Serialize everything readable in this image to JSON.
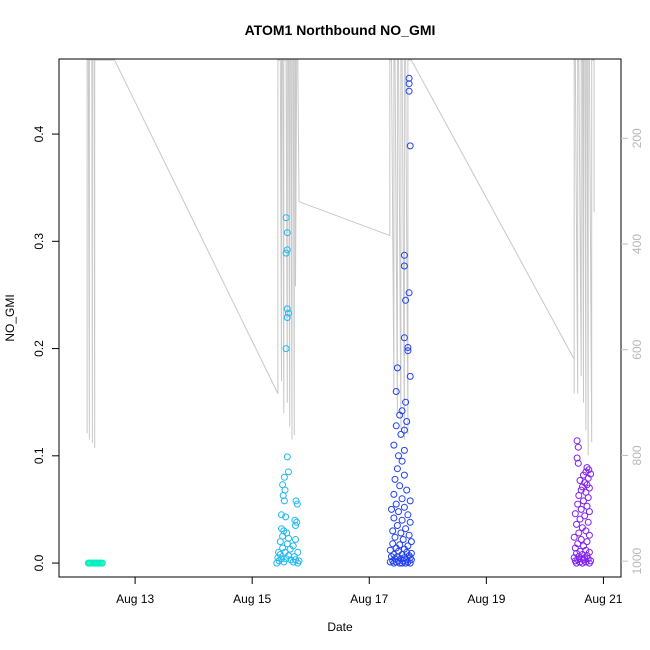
{
  "chart_data": {
    "type": "scatter",
    "title": "ATOM1 Northbound NO_GMI",
    "xlabel": "Date",
    "ylabel": "NO_GMI",
    "x_ticks": [
      "Aug 13",
      "Aug 15",
      "Aug 17",
      "Aug 19",
      "Aug 21"
    ],
    "x_tick_days": [
      13,
      15,
      17,
      19,
      21
    ],
    "xlim_days": [
      11.7,
      21.3
    ],
    "y_ticks": [
      "0.0",
      "0.1",
      "0.2",
      "0.3",
      "0.4"
    ],
    "y_tick_values": [
      0.0,
      0.1,
      0.2,
      0.3,
      0.4
    ],
    "ylim": [
      -0.013,
      0.47
    ],
    "secondary_axis": {
      "reversed": true,
      "ticks": [
        "200",
        "400",
        "600",
        "800",
        "1000"
      ],
      "tick_values": [
        200,
        400,
        600,
        800,
        1000
      ],
      "lim": [
        50,
        1030
      ],
      "color": "#bebebe"
    },
    "pressure_trace_color": "#c8c8c8",
    "series": [
      {
        "color": "#00f0c0",
        "points": [
          [
            12.2,
            0.0
          ],
          [
            12.22,
            0.0
          ],
          [
            12.24,
            0.0
          ],
          [
            12.26,
            0.0
          ],
          [
            12.28,
            0.0
          ],
          [
            12.3,
            0.0
          ],
          [
            12.32,
            0.0
          ],
          [
            12.34,
            0.0
          ],
          [
            12.36,
            0.0
          ],
          [
            12.38,
            0.0
          ],
          [
            12.4,
            0.0
          ],
          [
            12.42,
            0.0
          ],
          [
            12.44,
            0.0
          ]
        ]
      },
      {
        "color": "#20b8f0",
        "points": [
          [
            15.58,
            0.322
          ],
          [
            15.6,
            0.308
          ],
          [
            15.6,
            0.292
          ],
          [
            15.58,
            0.289
          ],
          [
            15.6,
            0.237
          ],
          [
            15.62,
            0.233
          ],
          [
            15.6,
            0.229
          ],
          [
            15.58,
            0.2
          ],
          [
            15.6,
            0.099
          ],
          [
            15.62,
            0.085
          ],
          [
            15.55,
            0.08
          ],
          [
            15.52,
            0.073
          ],
          [
            15.56,
            0.068
          ],
          [
            15.53,
            0.063
          ],
          [
            15.55,
            0.058
          ],
          [
            15.75,
            0.058
          ],
          [
            15.77,
            0.055
          ],
          [
            15.5,
            0.045
          ],
          [
            15.57,
            0.043
          ],
          [
            15.73,
            0.04
          ],
          [
            15.76,
            0.038
          ],
          [
            15.74,
            0.035
          ],
          [
            15.5,
            0.032
          ],
          [
            15.54,
            0.03
          ],
          [
            15.59,
            0.028
          ],
          [
            15.52,
            0.025
          ],
          [
            15.62,
            0.023
          ],
          [
            15.74,
            0.022
          ],
          [
            15.48,
            0.02
          ],
          [
            15.6,
            0.018
          ],
          [
            15.7,
            0.016
          ],
          [
            15.52,
            0.014
          ],
          [
            15.65,
            0.013
          ],
          [
            15.45,
            0.01
          ],
          [
            15.56,
            0.01
          ],
          [
            15.78,
            0.01
          ],
          [
            15.48,
            0.008
          ],
          [
            15.62,
            0.007
          ],
          [
            15.72,
            0.006
          ],
          [
            15.44,
            0.005
          ],
          [
            15.5,
            0.004
          ],
          [
            15.58,
            0.004
          ],
          [
            15.66,
            0.003
          ],
          [
            15.74,
            0.003
          ],
          [
            15.8,
            0.002
          ],
          [
            15.46,
            0.002
          ],
          [
            15.54,
            0.001
          ],
          [
            15.7,
            0.001
          ],
          [
            15.78,
            0.0
          ],
          [
            15.42,
            0.0
          ]
        ]
      },
      {
        "color": "#2040f0",
        "points": [
          [
            17.68,
            0.452
          ],
          [
            17.68,
            0.447
          ],
          [
            17.68,
            0.44
          ],
          [
            17.7,
            0.389
          ],
          [
            17.6,
            0.287
          ],
          [
            17.6,
            0.277
          ],
          [
            17.68,
            0.252
          ],
          [
            17.62,
            0.245
          ],
          [
            17.6,
            0.21
          ],
          [
            17.66,
            0.201
          ],
          [
            17.66,
            0.198
          ],
          [
            17.48,
            0.182
          ],
          [
            17.7,
            0.174
          ],
          [
            17.46,
            0.16
          ],
          [
            17.62,
            0.15
          ],
          [
            17.56,
            0.142
          ],
          [
            17.52,
            0.138
          ],
          [
            17.64,
            0.132
          ],
          [
            17.46,
            0.128
          ],
          [
            17.6,
            0.124
          ],
          [
            17.54,
            0.12
          ],
          [
            17.42,
            0.11
          ],
          [
            17.6,
            0.105
          ],
          [
            17.5,
            0.1
          ],
          [
            17.56,
            0.095
          ],
          [
            17.48,
            0.088
          ],
          [
            17.6,
            0.082
          ],
          [
            17.44,
            0.078
          ],
          [
            17.52,
            0.072
          ],
          [
            17.64,
            0.068
          ],
          [
            17.42,
            0.064
          ],
          [
            17.56,
            0.06
          ],
          [
            17.7,
            0.058
          ],
          [
            17.46,
            0.055
          ],
          [
            17.6,
            0.052
          ],
          [
            17.38,
            0.05
          ],
          [
            17.5,
            0.048
          ],
          [
            17.66,
            0.045
          ],
          [
            17.42,
            0.042
          ],
          [
            17.56,
            0.04
          ],
          [
            17.7,
            0.038
          ],
          [
            17.48,
            0.035
          ],
          [
            17.62,
            0.032
          ],
          [
            17.4,
            0.03
          ],
          [
            17.54,
            0.028
          ],
          [
            17.68,
            0.026
          ],
          [
            17.44,
            0.024
          ],
          [
            17.58,
            0.022
          ],
          [
            17.72,
            0.02
          ],
          [
            17.4,
            0.018
          ],
          [
            17.52,
            0.017
          ],
          [
            17.66,
            0.016
          ],
          [
            17.46,
            0.014
          ],
          [
            17.6,
            0.013
          ],
          [
            17.36,
            0.012
          ],
          [
            17.5,
            0.011
          ],
          [
            17.64,
            0.01
          ],
          [
            17.72,
            0.009
          ],
          [
            17.42,
            0.008
          ],
          [
            17.56,
            0.008
          ],
          [
            17.68,
            0.007
          ],
          [
            17.38,
            0.006
          ],
          [
            17.48,
            0.006
          ],
          [
            17.6,
            0.005
          ],
          [
            17.7,
            0.005
          ],
          [
            17.44,
            0.004
          ],
          [
            17.54,
            0.004
          ],
          [
            17.64,
            0.003
          ],
          [
            17.72,
            0.003
          ],
          [
            17.4,
            0.002
          ],
          [
            17.5,
            0.002
          ],
          [
            17.58,
            0.002
          ],
          [
            17.66,
            0.001
          ],
          [
            17.36,
            0.001
          ],
          [
            17.46,
            0.001
          ],
          [
            17.56,
            0.0
          ],
          [
            17.62,
            0.0
          ],
          [
            17.7,
            0.0
          ],
          [
            17.42,
            0.0
          ],
          [
            17.52,
            0.0
          ]
        ]
      },
      {
        "color": "#8020f0",
        "points": [
          [
            20.55,
            0.114
          ],
          [
            20.57,
            0.108
          ],
          [
            20.55,
            0.098
          ],
          [
            20.57,
            0.093
          ],
          [
            20.72,
            0.089
          ],
          [
            20.75,
            0.087
          ],
          [
            20.7,
            0.085
          ],
          [
            20.78,
            0.083
          ],
          [
            20.66,
            0.082
          ],
          [
            20.74,
            0.079
          ],
          [
            20.6,
            0.077
          ],
          [
            20.68,
            0.075
          ],
          [
            20.72,
            0.073
          ],
          [
            20.64,
            0.071
          ],
          [
            20.76,
            0.07
          ],
          [
            20.62,
            0.068
          ],
          [
            20.7,
            0.066
          ],
          [
            20.58,
            0.063
          ],
          [
            20.74,
            0.061
          ],
          [
            20.66,
            0.058
          ],
          [
            20.56,
            0.055
          ],
          [
            20.72,
            0.053
          ],
          [
            20.62,
            0.05
          ],
          [
            20.76,
            0.048
          ],
          [
            20.52,
            0.046
          ],
          [
            20.68,
            0.044
          ],
          [
            20.6,
            0.041
          ],
          [
            20.74,
            0.038
          ],
          [
            20.54,
            0.036
          ],
          [
            20.64,
            0.033
          ],
          [
            20.7,
            0.03
          ],
          [
            20.58,
            0.028
          ],
          [
            20.76,
            0.026
          ],
          [
            20.5,
            0.024
          ],
          [
            20.62,
            0.022
          ],
          [
            20.72,
            0.02
          ],
          [
            20.56,
            0.018
          ],
          [
            20.66,
            0.016
          ],
          [
            20.52,
            0.014
          ],
          [
            20.7,
            0.012
          ],
          [
            20.6,
            0.011
          ],
          [
            20.76,
            0.01
          ],
          [
            20.54,
            0.009
          ],
          [
            20.64,
            0.008
          ],
          [
            20.72,
            0.007
          ],
          [
            20.58,
            0.006
          ],
          [
            20.68,
            0.005
          ],
          [
            20.5,
            0.005
          ],
          [
            20.62,
            0.004
          ],
          [
            20.74,
            0.004
          ],
          [
            20.56,
            0.003
          ],
          [
            20.66,
            0.003
          ],
          [
            20.78,
            0.002
          ],
          [
            20.52,
            0.002
          ],
          [
            20.6,
            0.001
          ],
          [
            20.7,
            0.001
          ],
          [
            20.76,
            0.0
          ],
          [
            20.64,
            0.0
          ],
          [
            20.54,
            0.0
          ]
        ]
      }
    ],
    "pressure_trace": [
      [
        12.18,
        758
      ],
      [
        12.18,
        52
      ],
      [
        12.2,
        52
      ],
      [
        12.22,
        770
      ],
      [
        12.22,
        52
      ],
      [
        12.26,
        52
      ],
      [
        12.27,
        776
      ],
      [
        12.27,
        52
      ],
      [
        12.3,
        52
      ],
      [
        12.31,
        786
      ],
      [
        12.31,
        52
      ],
      [
        12.65,
        52
      ],
      [
        15.44,
        683
      ],
      [
        15.44,
        52
      ],
      [
        15.48,
        52
      ],
      [
        15.5,
        660
      ],
      [
        15.5,
        52
      ],
      [
        15.52,
        52
      ],
      [
        15.54,
        720
      ],
      [
        15.54,
        52
      ],
      [
        15.58,
        52
      ],
      [
        15.6,
        700
      ],
      [
        15.6,
        52
      ],
      [
        15.62,
        52
      ],
      [
        15.64,
        745
      ],
      [
        15.64,
        52
      ],
      [
        15.66,
        52
      ],
      [
        15.68,
        770
      ],
      [
        15.68,
        52
      ],
      [
        15.7,
        52
      ],
      [
        15.72,
        762
      ],
      [
        15.72,
        52
      ],
      [
        15.74,
        52
      ],
      [
        15.74,
        480
      ],
      [
        15.76,
        52
      ],
      [
        15.78,
        52
      ],
      [
        15.8,
        312
      ],
      [
        15.8,
        320
      ],
      [
        17.35,
        384
      ],
      [
        17.35,
        52
      ],
      [
        17.38,
        52
      ],
      [
        17.42,
        680
      ],
      [
        17.42,
        52
      ],
      [
        17.44,
        52
      ],
      [
        17.48,
        720
      ],
      [
        17.48,
        52
      ],
      [
        17.5,
        52
      ],
      [
        17.54,
        750
      ],
      [
        17.54,
        52
      ],
      [
        17.56,
        52
      ],
      [
        17.6,
        770
      ],
      [
        17.6,
        52
      ],
      [
        17.62,
        52
      ],
      [
        17.66,
        760
      ],
      [
        17.66,
        52
      ],
      [
        17.68,
        52
      ],
      [
        17.72,
        52
      ],
      [
        20.5,
        618
      ],
      [
        20.5,
        683
      ],
      [
        20.5,
        52
      ],
      [
        20.52,
        52
      ],
      [
        20.56,
        683
      ],
      [
        20.56,
        52
      ],
      [
        20.58,
        52
      ],
      [
        20.62,
        650
      ],
      [
        20.62,
        52
      ],
      [
        20.64,
        52
      ],
      [
        20.66,
        700
      ],
      [
        20.66,
        52
      ],
      [
        20.68,
        52
      ],
      [
        20.7,
        752
      ],
      [
        20.7,
        52
      ],
      [
        20.72,
        52
      ],
      [
        20.74,
        800
      ],
      [
        20.74,
        52
      ],
      [
        20.76,
        52
      ],
      [
        20.8,
        775
      ],
      [
        20.8,
        52
      ],
      [
        20.84,
        52
      ],
      [
        20.84,
        340
      ]
    ]
  }
}
